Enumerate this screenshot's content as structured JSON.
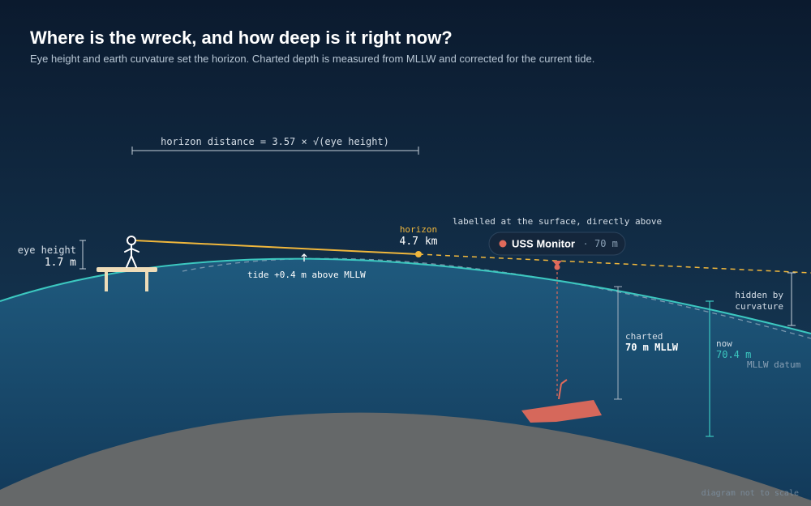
{
  "title": "Where is the wreck, and how deep is it right now?",
  "subtitle": "Eye height and earth curvature set the horizon. Charted depth is measured from MLLW and corrected for the current tide.",
  "formula": "horizon distance = 3.57 × √(eye height)",
  "eye_height": {
    "label": "eye height",
    "value": "1.7 m"
  },
  "horizon": {
    "label": "horizon",
    "value": "4.7 km"
  },
  "surface_note": "labelled at the surface, directly above",
  "wreck": {
    "name": "USS Monitor",
    "separator": "·",
    "depth": "70 m"
  },
  "tide_note": "tide +0.4 m above MLLW",
  "hidden": {
    "line1": "hidden by",
    "line2": "curvature"
  },
  "charted": {
    "label": "charted",
    "value": "70 m MLLW"
  },
  "now": {
    "label": "now",
    "value": "70.4 m",
    "datum": "MLLW datum"
  },
  "footnote": "diagram not to scale",
  "colors": {
    "sky_top": "#0b1a2e",
    "sky_bottom": "#163a58",
    "water": "#1c5275",
    "water_deep": "#133b5a",
    "seabed": "#656869",
    "surface_line": "#3cc8c0",
    "sight_line": "#f0b73c",
    "wreck": "#e06a5b",
    "dock": "#eedcb8",
    "label": "#d4dde6",
    "muted": "#8aa0b5"
  }
}
